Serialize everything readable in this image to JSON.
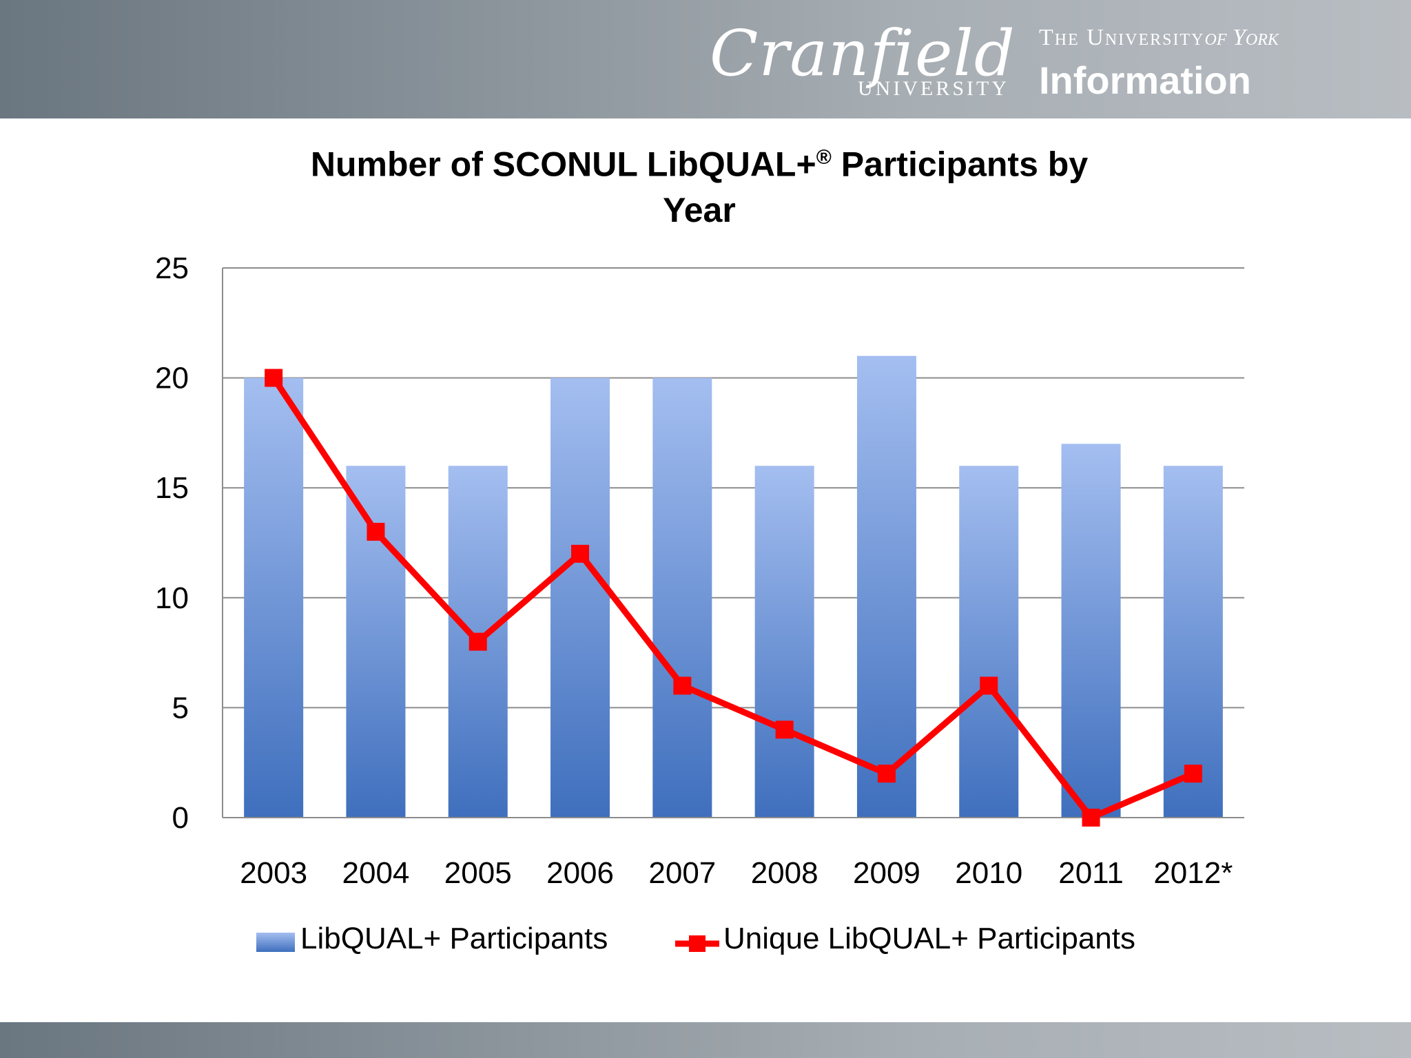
{
  "header": {
    "cranfield_name": "Cranfield",
    "cranfield_sub": "UNIVERSITY",
    "york_top": "The University",
    "york_of_york": "of York",
    "york_bottom": "Information"
  },
  "chart_data": {
    "type": "bar",
    "title": "Number of SCONUL LibQUAL+® Participants by Year",
    "title_main": "Number of SCONUL LibQUAL+",
    "title_reg": "®",
    "title_rest_line1": " Participants by",
    "title_line2": "Year",
    "categories": [
      "2003",
      "2004",
      "2005",
      "2006",
      "2007",
      "2008",
      "2009",
      "2010",
      "2011",
      "2012*"
    ],
    "series": [
      {
        "name": "LibQUAL+ Participants",
        "kind": "bar",
        "values": [
          20,
          16,
          16,
          20,
          20,
          16,
          21,
          16,
          17,
          16
        ],
        "color_top": "#a4bef0",
        "color_bottom": "#3f6fbd"
      },
      {
        "name": "Unique LibQUAL+ Participants",
        "kind": "line",
        "values": [
          20,
          13,
          8,
          12,
          6,
          4,
          2,
          6,
          0,
          2
        ],
        "color": "#ff0000"
      }
    ],
    "ylim": [
      0,
      25
    ],
    "yticks": [
      0,
      5,
      10,
      15,
      20,
      25
    ],
    "grid": true,
    "legend_position": "bottom"
  }
}
